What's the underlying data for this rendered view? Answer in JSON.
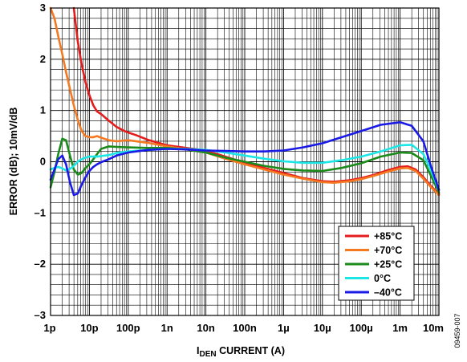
{
  "chart_data": {
    "type": "line",
    "xscale": "log",
    "xlim": [
      1e-12,
      0.01
    ],
    "ylim": [
      -3,
      3
    ],
    "grid": true,
    "legend_position": "bottom-right",
    "xlabel_main": "I",
    "xlabel_sub": "DEN",
    "xlabel_rest": " CURRENT (A)",
    "ylabel": "ERROR (dB); 10mV/dB",
    "figure_id": "09459-007",
    "x_ticks": [
      {
        "value": 1e-12,
        "label": "1p"
      },
      {
        "value": 1e-11,
        "label": "10p"
      },
      {
        "value": 1e-10,
        "label": "100p"
      },
      {
        "value": 1e-09,
        "label": "1n"
      },
      {
        "value": 1e-08,
        "label": "10n"
      },
      {
        "value": 1e-07,
        "label": "100n"
      },
      {
        "value": 1e-06,
        "label": "1µ"
      },
      {
        "value": 1e-05,
        "label": "10µ"
      },
      {
        "value": 0.0001,
        "label": "100µ"
      },
      {
        "value": 0.001,
        "label": "1m"
      },
      {
        "value": 0.01,
        "label": "10m"
      }
    ],
    "y_ticks": [
      {
        "value": 3,
        "label": "3"
      },
      {
        "value": 2,
        "label": "2"
      },
      {
        "value": 1,
        "label": "1"
      },
      {
        "value": 0,
        "label": "0"
      },
      {
        "value": -1,
        "label": "–1"
      },
      {
        "value": -2,
        "label": "–2"
      },
      {
        "value": -3,
        "label": "–3"
      }
    ],
    "series": [
      {
        "name": "+85°C",
        "color": "#e41c1c",
        "x": [
          3.98e-12,
          5.01e-12,
          6.31e-12,
          7.94e-12,
          1e-11,
          1.26e-11,
          1.58e-11,
          2e-11,
          3.16e-11,
          5.01e-11,
          7.94e-11,
          1e-10,
          1.58e-10,
          3.16e-10,
          1e-09,
          3.16e-09,
          1e-08,
          3.16e-08,
          1e-07,
          3.16e-07,
          1e-06,
          3.16e-06,
          1e-05,
          2e-05,
          5.01e-05,
          0.0001,
          0.0002,
          0.000501,
          0.001,
          0.00158,
          0.00251,
          0.00398,
          0.00631,
          0.01
        ],
        "y": [
          3.0,
          2.35,
          1.9,
          1.55,
          1.3,
          1.1,
          0.98,
          0.93,
          0.8,
          0.68,
          0.6,
          0.57,
          0.52,
          0.43,
          0.32,
          0.27,
          0.22,
          0.1,
          -0.02,
          -0.12,
          -0.22,
          -0.32,
          -0.38,
          -0.39,
          -0.36,
          -0.32,
          -0.26,
          -0.16,
          -0.1,
          -0.09,
          -0.15,
          -0.3,
          -0.48,
          -0.63
        ]
      },
      {
        "name": "+70°C",
        "color": "#f47920",
        "x": [
          1e-12,
          1.26e-12,
          1.58e-12,
          2e-12,
          2.51e-12,
          3.16e-12,
          3.98e-12,
          5.01e-12,
          6.31e-12,
          7.94e-12,
          1e-11,
          1.26e-11,
          1.58e-11,
          2e-11,
          3.16e-11,
          5.01e-11,
          1e-10,
          3.16e-10,
          1e-09,
          3.16e-09,
          1e-08,
          3.16e-08,
          1e-07,
          3.16e-07,
          1e-06,
          3.16e-06,
          1e-05,
          2e-05,
          5.01e-05,
          0.0001,
          0.0002,
          0.000501,
          0.001,
          0.00158,
          0.00251,
          0.00398,
          0.00631,
          0.01
        ],
        "y": [
          3.0,
          2.8,
          2.45,
          2.1,
          1.75,
          1.42,
          1.1,
          0.82,
          0.6,
          0.5,
          0.48,
          0.48,
          0.5,
          0.47,
          0.42,
          0.4,
          0.42,
          0.37,
          0.3,
          0.24,
          0.18,
          0.06,
          -0.05,
          -0.15,
          -0.25,
          -0.33,
          -0.4,
          -0.41,
          -0.38,
          -0.34,
          -0.28,
          -0.19,
          -0.13,
          -0.12,
          -0.18,
          -0.33,
          -0.5,
          -0.65
        ]
      },
      {
        "name": "+25°C",
        "color": "#1a8a1a",
        "x": [
          1e-12,
          1.26e-12,
          1.58e-12,
          2e-12,
          2.51e-12,
          3.16e-12,
          3.98e-12,
          5.01e-12,
          6.31e-12,
          7.94e-12,
          1e-11,
          1.26e-11,
          1.58e-11,
          2e-11,
          3.16e-11,
          5.01e-11,
          1e-10,
          3.16e-10,
          1e-09,
          3.16e-09,
          1e-08,
          3.16e-08,
          1e-07,
          3.16e-07,
          1e-06,
          3.16e-06,
          1e-05,
          3.16e-05,
          0.0001,
          0.000316,
          0.001,
          0.002,
          0.00398,
          0.00631,
          0.01
        ],
        "y": [
          -0.5,
          -0.2,
          0.15,
          0.45,
          0.42,
          0.12,
          -0.15,
          -0.25,
          -0.22,
          -0.12,
          -0.05,
          0.05,
          0.15,
          0.25,
          0.3,
          0.29,
          0.28,
          0.27,
          0.27,
          0.24,
          0.18,
          0.08,
          0.0,
          -0.08,
          -0.14,
          -0.17,
          -0.18,
          -0.12,
          -0.03,
          0.1,
          0.18,
          0.17,
          0.03,
          -0.28,
          -0.6
        ]
      },
      {
        "name": "0°C",
        "color": "#1de6e6",
        "x": [
          1e-12,
          1.26e-12,
          1.58e-12,
          2e-12,
          2.51e-12,
          3.16e-12,
          3.98e-12,
          5.01e-12,
          6.31e-12,
          7.94e-12,
          1e-11,
          1.58e-11,
          3.16e-11,
          5.01e-11,
          1e-10,
          3.16e-10,
          1e-09,
          3.16e-09,
          1e-08,
          3.16e-08,
          1e-07,
          3.16e-07,
          1e-06,
          3.16e-06,
          1e-05,
          3.16e-05,
          0.0001,
          0.000316,
          0.001,
          0.002,
          0.00398,
          0.00631,
          0.01
        ],
        "y": [
          -0.15,
          -0.12,
          -0.1,
          -0.13,
          -0.17,
          -0.14,
          -0.08,
          0.0,
          0.05,
          0.08,
          0.1,
          0.1,
          0.13,
          0.17,
          0.2,
          0.23,
          0.25,
          0.25,
          0.23,
          0.18,
          0.12,
          0.06,
          0.01,
          -0.02,
          -0.02,
          0.03,
          0.1,
          0.2,
          0.32,
          0.33,
          0.15,
          -0.18,
          -0.55
        ]
      },
      {
        "name": "–40°C",
        "color": "#1a1ae6",
        "x": [
          1e-12,
          1.26e-12,
          1.58e-12,
          2e-12,
          2.51e-12,
          3.16e-12,
          3.98e-12,
          5.01e-12,
          6.31e-12,
          7.94e-12,
          1e-11,
          1.26e-11,
          1.58e-11,
          2e-11,
          3.16e-11,
          5.01e-11,
          1e-10,
          3.16e-10,
          1e-09,
          3.16e-09,
          1e-08,
          3.16e-08,
          1e-07,
          3.16e-07,
          1e-06,
          3.16e-06,
          1e-05,
          3.16e-05,
          0.0001,
          0.000316,
          0.001,
          0.002,
          0.00398,
          0.00631,
          0.01
        ],
        "y": [
          -0.35,
          -0.15,
          0.05,
          0.12,
          -0.05,
          -0.4,
          -0.65,
          -0.62,
          -0.45,
          -0.3,
          -0.18,
          -0.1,
          -0.05,
          -0.01,
          0.05,
          0.12,
          0.18,
          0.23,
          0.25,
          0.24,
          0.22,
          0.21,
          0.2,
          0.2,
          0.22,
          0.28,
          0.36,
          0.48,
          0.6,
          0.72,
          0.77,
          0.7,
          0.4,
          -0.1,
          -0.55
        ]
      }
    ]
  }
}
